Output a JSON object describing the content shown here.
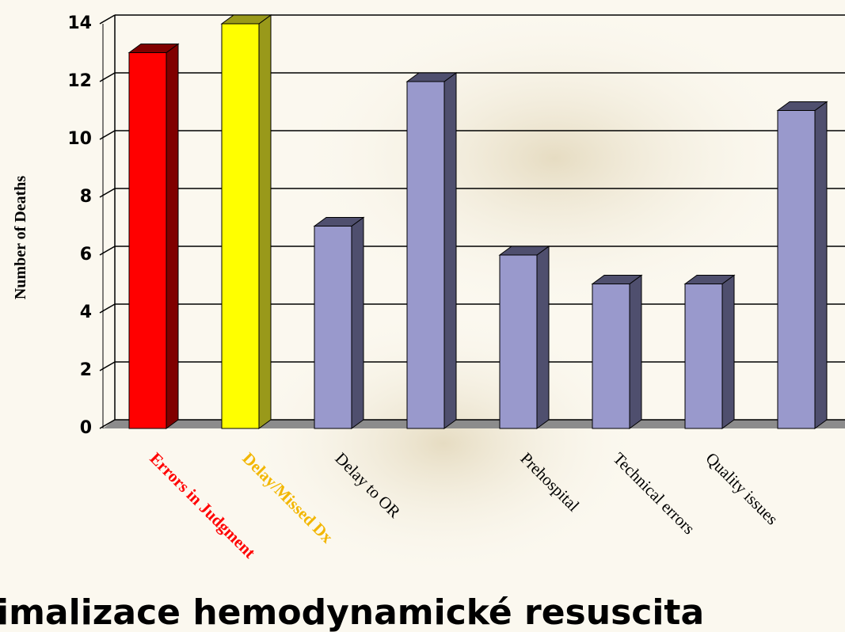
{
  "chart_data": {
    "type": "bar3d",
    "title": "imalizace hemodynamické resuscita",
    "y_label": "Number of Deaths",
    "categories": [
      "Errors  in Judgment",
      "Delay/Missed Dx",
      "Delay to OR",
      null,
      "Prehospital",
      "Technical errors",
      "Quality issues",
      null
    ],
    "values": [
      13,
      14,
      7,
      12,
      6,
      5,
      5,
      11
    ],
    "colors": [
      "#ff0000",
      "#ffff00",
      "#9999cc",
      "#9999cc",
      "#9999cc",
      "#9999cc",
      "#9999cc",
      "#9999cc"
    ],
    "side_colors": [
      "#800000",
      "#99991a",
      "#4f4f6e",
      "#4f4f6e",
      "#4f4f6e",
      "#4f4f6e",
      "#4f4f6e",
      "#4f4f6e"
    ],
    "label_colors": [
      "#ff0000",
      "#f2b600",
      "#000000",
      "#000000",
      "#000000",
      "#000000",
      "#000000",
      "#000000"
    ],
    "ylim": [
      0,
      14
    ],
    "yticks": [
      0,
      2,
      4,
      6,
      8,
      10,
      12,
      14
    ],
    "grid": true
  }
}
